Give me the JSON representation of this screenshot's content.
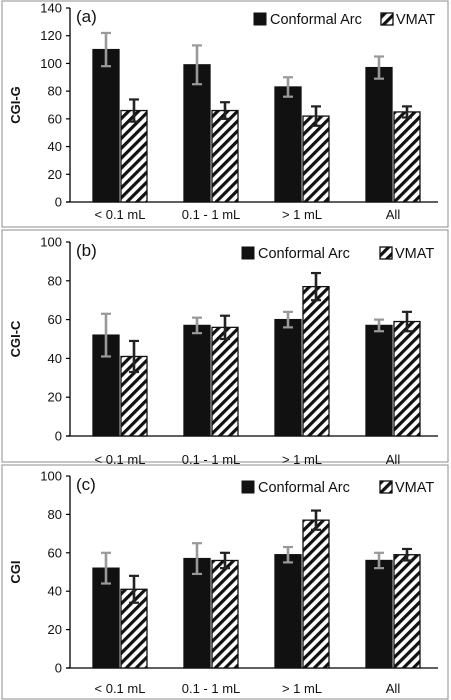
{
  "chart_data": [
    {
      "type": "bar",
      "panel_label": "(a)",
      "ylabel": "CGI-G",
      "ylim": [
        0,
        140
      ],
      "yticks": [
        0,
        20,
        40,
        60,
        80,
        100,
        120,
        140
      ],
      "categories": [
        "< 0.1 mL",
        "0.1 - 1 mL",
        "> 1 mL",
        "All"
      ],
      "legend_position": "top-right",
      "series": [
        {
          "name": "Conformal Arc",
          "pattern": "solid",
          "error_bar_color": "#999999",
          "values": [
            110,
            99,
            83,
            97
          ],
          "errors": [
            12,
            14,
            7,
            8
          ]
        },
        {
          "name": "VMAT",
          "pattern": "hatch",
          "error_bar_color": "#222222",
          "values": [
            66,
            66,
            62,
            65
          ],
          "errors": [
            8,
            6,
            7,
            4
          ]
        }
      ]
    },
    {
      "type": "bar",
      "panel_label": "(b)",
      "ylabel": "CGI-C",
      "ylim": [
        0,
        100
      ],
      "yticks": [
        0,
        20,
        40,
        60,
        80,
        100
      ],
      "categories": [
        "< 0.1 mL",
        "0.1 - 1 mL",
        "> 1 mL",
        "All"
      ],
      "legend_position": "top-right",
      "series": [
        {
          "name": "Conformal Arc",
          "pattern": "solid",
          "error_bar_color": "#999999",
          "values": [
            52,
            57,
            60,
            57
          ],
          "errors": [
            11,
            4,
            4,
            3
          ]
        },
        {
          "name": "VMAT",
          "pattern": "hatch",
          "error_bar_color": "#222222",
          "values": [
            41,
            56,
            77,
            59
          ],
          "errors": [
            8,
            6,
            7,
            5
          ]
        }
      ]
    },
    {
      "type": "bar",
      "panel_label": "(c)",
      "ylabel": "CGI",
      "ylim": [
        0,
        100
      ],
      "yticks": [
        0,
        20,
        40,
        60,
        80,
        100
      ],
      "categories": [
        "< 0.1 mL",
        "0.1 - 1 mL",
        "> 1 mL",
        "All"
      ],
      "legend_position": "top-right",
      "series": [
        {
          "name": "Conformal Arc",
          "pattern": "solid",
          "error_bar_color": "#999999",
          "values": [
            52,
            57,
            59,
            56
          ],
          "errors": [
            8,
            8,
            4,
            4
          ]
        },
        {
          "name": "VMAT",
          "pattern": "hatch",
          "error_bar_color": "#222222",
          "values": [
            41,
            56,
            77,
            59
          ],
          "errors": [
            7,
            4,
            5,
            3
          ]
        }
      ]
    }
  ],
  "colors": {
    "bar_fill": "#111111",
    "hatch_stroke": "#111111",
    "axis": "#000000",
    "frame": "#8c8c8c",
    "background": "#ffffff"
  }
}
